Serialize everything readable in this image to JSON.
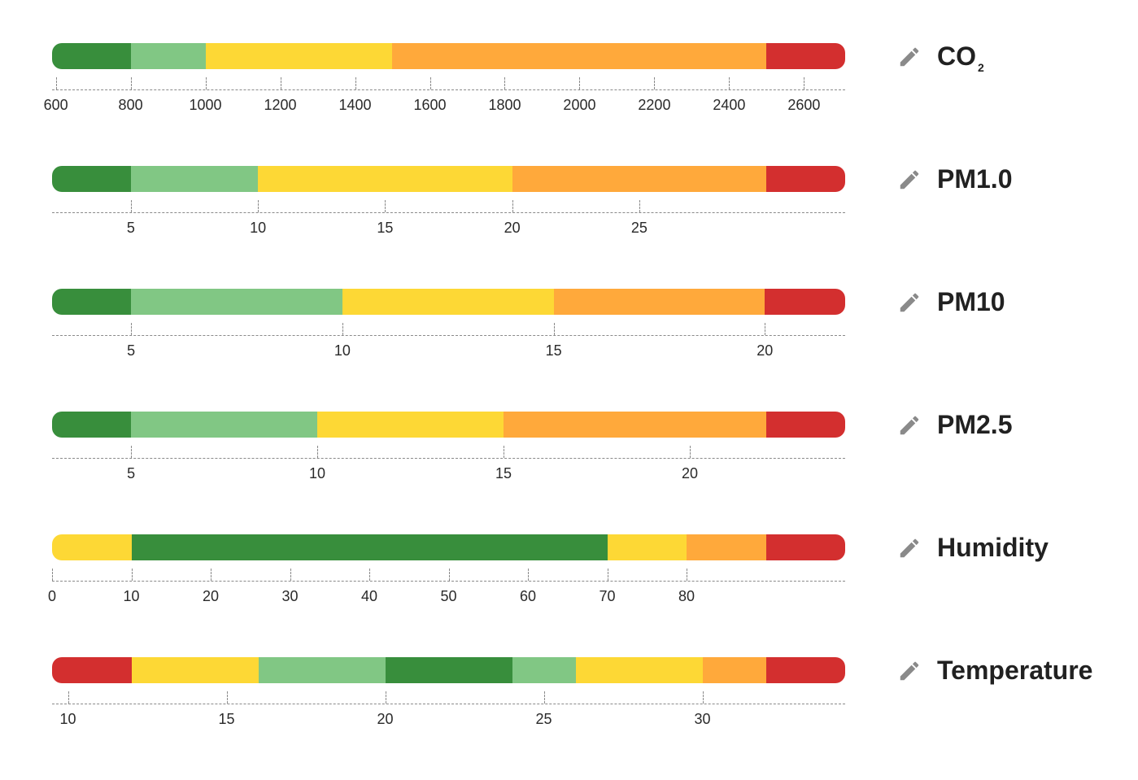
{
  "colors": {
    "dark_green": "#388e3c",
    "light_green": "#81c784",
    "yellow": "#fdd835",
    "orange": "#ffa93b",
    "red": "#d32f2f",
    "axis": "#8a8a8a",
    "text": "#212121",
    "edit_icon": "#8a8a8a"
  },
  "edit_icon": "pencil-icon",
  "scales": [
    {
      "key": "co2",
      "title": "CO",
      "subscript": "2",
      "min": 590,
      "max": 2710,
      "segments": [
        {
          "from": 590,
          "to": 800,
          "color": "dark_green"
        },
        {
          "from": 800,
          "to": 1000,
          "color": "light_green"
        },
        {
          "from": 1000,
          "to": 1500,
          "color": "yellow"
        },
        {
          "from": 1500,
          "to": 2500,
          "color": "orange"
        },
        {
          "from": 2500,
          "to": 2710,
          "color": "red"
        }
      ],
      "ticks": [
        "600",
        "800",
        "1000",
        "1200",
        "1400",
        "1600",
        "1800",
        "2000",
        "2200",
        "2400",
        "2600"
      ]
    },
    {
      "key": "pm1",
      "title": "PM1.0",
      "subscript": "",
      "min": 1.9,
      "max": 33.1,
      "segments": [
        {
          "from": 1.9,
          "to": 5,
          "color": "dark_green"
        },
        {
          "from": 5,
          "to": 10,
          "color": "light_green"
        },
        {
          "from": 10,
          "to": 20,
          "color": "yellow"
        },
        {
          "from": 20,
          "to": 30,
          "color": "orange"
        },
        {
          "from": 30,
          "to": 33.1,
          "color": "red"
        }
      ],
      "ticks": [
        "5",
        "10",
        "15",
        "20",
        "25"
      ]
    },
    {
      "key": "pm10",
      "title": "PM10",
      "subscript": "",
      "min": 3.13,
      "max": 21.9,
      "segments": [
        {
          "from": 3.13,
          "to": 5,
          "color": "dark_green"
        },
        {
          "from": 5,
          "to": 10,
          "color": "light_green"
        },
        {
          "from": 10,
          "to": 15,
          "color": "yellow"
        },
        {
          "from": 15,
          "to": 20,
          "color": "orange"
        },
        {
          "from": 20,
          "to": 21.9,
          "color": "red"
        }
      ],
      "ticks": [
        "5",
        "10",
        "15",
        "20"
      ]
    },
    {
      "key": "pm25",
      "title": "PM2.5",
      "subscript": "",
      "min": 2.88,
      "max": 24.17,
      "segments": [
        {
          "from": 2.88,
          "to": 5,
          "color": "dark_green"
        },
        {
          "from": 5,
          "to": 10,
          "color": "light_green"
        },
        {
          "from": 10,
          "to": 15,
          "color": "yellow"
        },
        {
          "from": 15,
          "to": 22.05,
          "color": "orange"
        },
        {
          "from": 22.05,
          "to": 24.17,
          "color": "red"
        }
      ],
      "ticks": [
        "5",
        "10",
        "15",
        "20"
      ]
    },
    {
      "key": "humidity",
      "title": "Humidity",
      "subscript": "",
      "min": 0,
      "max": 100,
      "segments": [
        {
          "from": 0,
          "to": 10,
          "color": "yellow"
        },
        {
          "from": 10,
          "to": 70,
          "color": "dark_green"
        },
        {
          "from": 70,
          "to": 80,
          "color": "yellow"
        },
        {
          "from": 80,
          "to": 90,
          "color": "orange"
        },
        {
          "from": 90,
          "to": 100,
          "color": "red"
        }
      ],
      "ticks": [
        "0",
        "10",
        "20",
        "30",
        "40",
        "50",
        "60",
        "70",
        "80"
      ]
    },
    {
      "key": "temperature",
      "title": "Temperature",
      "subscript": "",
      "min": 9.5,
      "max": 34.5,
      "segments": [
        {
          "from": 9.5,
          "to": 12,
          "color": "red"
        },
        {
          "from": 12,
          "to": 16,
          "color": "yellow"
        },
        {
          "from": 16,
          "to": 20,
          "color": "light_green"
        },
        {
          "from": 20,
          "to": 24,
          "color": "dark_green"
        },
        {
          "from": 24,
          "to": 26,
          "color": "light_green"
        },
        {
          "from": 26,
          "to": 30,
          "color": "yellow"
        },
        {
          "from": 30,
          "to": 32,
          "color": "orange"
        },
        {
          "from": 32,
          "to": 34.5,
          "color": "red"
        }
      ],
      "ticks": [
        "10",
        "15",
        "20",
        "25",
        "30"
      ]
    }
  ]
}
